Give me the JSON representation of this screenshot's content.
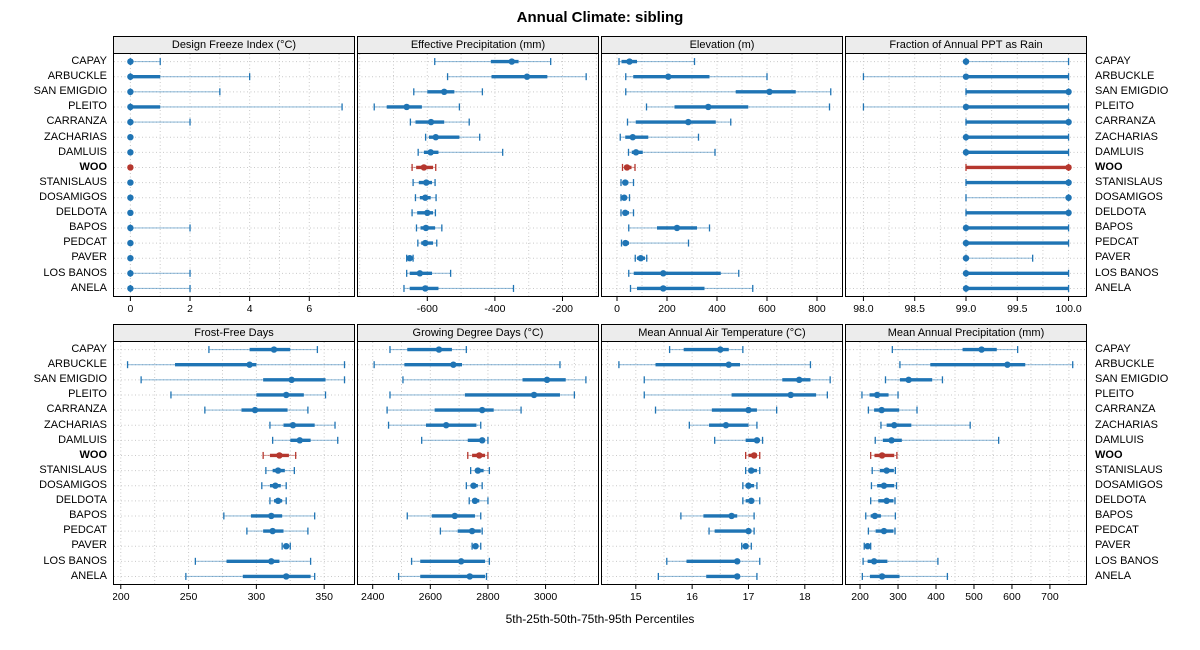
{
  "title": "Annual Climate: sibling",
  "caption": "5th-25th-50th-75th-95th Percentiles",
  "colors": {
    "series": "#1f74b4",
    "highlight": "#b5372e",
    "strip_bg": "#ececec",
    "grid": "#c9c9c9",
    "border": "#000000"
  },
  "sites": [
    "CAPAY",
    "ARBUCKLE",
    "SAN EMIGDIO",
    "PLEITO",
    "CARRANZA",
    "ZACHARIAS",
    "DAMLUIS",
    "WOO",
    "STANISLAUS",
    "DOSAMIGOS",
    "DELDOTA",
    "BAPOS",
    "PEDCAT",
    "PAVER",
    "LOS BANOS",
    "ANELA"
  ],
  "highlight_site": "WOO",
  "chart_data": {
    "type": "dotplot-percentiles",
    "percentile_labels": [
      "5th",
      "25th",
      "50th",
      "75th",
      "95th"
    ],
    "legend_position": "none",
    "grid": "dotted-minor",
    "panels": [
      {
        "title": "Design Freeze Index (°C)",
        "block": 0,
        "xlim": [
          -0.55,
          7.5
        ],
        "tick_values": [
          0,
          2,
          4,
          6
        ],
        "tick_labels": [
          "0",
          "2",
          "4",
          "6"
        ],
        "minor_step": 1,
        "values": [
          [
            0,
            0,
            0,
            0,
            1
          ],
          [
            0,
            0,
            0,
            1,
            4
          ],
          [
            0,
            0,
            0,
            0,
            3
          ],
          [
            0,
            0,
            0,
            1,
            7.1
          ],
          [
            0,
            0,
            0,
            0,
            2
          ],
          [
            0,
            0,
            0,
            0,
            0
          ],
          [
            0,
            0,
            0,
            0,
            0
          ],
          [
            0,
            0,
            0,
            0,
            0
          ],
          [
            0,
            0,
            0,
            0,
            0
          ],
          [
            0,
            0,
            0,
            0,
            0
          ],
          [
            0,
            0,
            0,
            0,
            0
          ],
          [
            0,
            0,
            0,
            0,
            2
          ],
          [
            0,
            0,
            0,
            0,
            0
          ],
          [
            0,
            0,
            0,
            0,
            0
          ],
          [
            0,
            0,
            0,
            0,
            2
          ],
          [
            0,
            0,
            0,
            0,
            2
          ]
        ]
      },
      {
        "title": "Effective Precipitation (mm)",
        "block": 0,
        "xlim": [
          -805,
          -95
        ],
        "tick_values": [
          -600,
          -400,
          -200
        ],
        "tick_labels": [
          "-600",
          "-400",
          "-200"
        ],
        "minor_step": 100,
        "values": [
          [
            -578,
            -412,
            -350,
            -330,
            -235
          ],
          [
            -540,
            -410,
            -305,
            -245,
            -130
          ],
          [
            -640,
            -600,
            -550,
            -520,
            -437
          ],
          [
            -757,
            -720,
            -661,
            -616,
            -505
          ],
          [
            -650,
            -635,
            -589,
            -550,
            -476
          ],
          [
            -605,
            -595,
            -575,
            -505,
            -445
          ],
          [
            -627,
            -610,
            -590,
            -567,
            -377
          ],
          [
            -645,
            -633,
            -610,
            -583,
            -575
          ],
          [
            -642,
            -625,
            -603,
            -586,
            -577
          ],
          [
            -635,
            -622,
            -606,
            -590,
            -574
          ],
          [
            -645,
            -630,
            -600,
            -583,
            -576
          ],
          [
            -632,
            -620,
            -604,
            -577,
            -557
          ],
          [
            -628,
            -618,
            -606,
            -583,
            -572
          ],
          [
            -661,
            -657,
            -652,
            -647,
            -642
          ],
          [
            -661,
            -652,
            -622,
            -586,
            -531
          ],
          [
            -669,
            -652,
            -606,
            -567,
            -345
          ]
        ]
      },
      {
        "title": "Elevation (m)",
        "block": 0,
        "xlim": [
          -60,
          900
        ],
        "tick_values": [
          0,
          200,
          400,
          600,
          800
        ],
        "tick_labels": [
          "0",
          "200",
          "400",
          "600",
          "800"
        ],
        "minor_step": 100,
        "values": [
          [
            8,
            18,
            50,
            80,
            310
          ],
          [
            35,
            65,
            205,
            370,
            600
          ],
          [
            35,
            475,
            610,
            715,
            855
          ],
          [
            118,
            230,
            365,
            525,
            850
          ],
          [
            42,
            75,
            285,
            395,
            455
          ],
          [
            13,
            33,
            63,
            125,
            326
          ],
          [
            46,
            59,
            76,
            103,
            392
          ],
          [
            22,
            30,
            40,
            58,
            72
          ],
          [
            16,
            25,
            33,
            45,
            66
          ],
          [
            16,
            22,
            29,
            40,
            50
          ],
          [
            16,
            25,
            33,
            48,
            66
          ],
          [
            47,
            160,
            240,
            320,
            370
          ],
          [
            18,
            25,
            34,
            48,
            286
          ],
          [
            73,
            80,
            95,
            112,
            119
          ],
          [
            47,
            67,
            185,
            415,
            487
          ],
          [
            54,
            80,
            185,
            350,
            543
          ]
        ]
      },
      {
        "title": "Fraction of Annual PPT as Rain",
        "block": 0,
        "xlim": [
          97.83,
          100.17
        ],
        "tick_values": [
          98.0,
          98.5,
          99.0,
          99.5,
          100.0
        ],
        "tick_labels": [
          "98.0",
          "98.5",
          "99.0",
          "99.5",
          "100.0"
        ],
        "minor_step": 0.25,
        "values": [
          [
            99,
            99,
            99,
            99,
            100
          ],
          [
            98,
            99,
            99,
            100,
            100
          ],
          [
            99,
            99,
            100,
            100,
            100
          ],
          [
            98,
            99,
            99,
            100,
            100
          ],
          [
            99,
            99,
            100,
            100,
            100
          ],
          [
            99,
            99,
            99,
            100,
            100
          ],
          [
            99,
            99,
            99,
            100,
            100
          ],
          [
            99,
            99,
            100,
            100,
            100
          ],
          [
            99,
            99,
            100,
            100,
            100
          ],
          [
            99,
            100,
            100,
            100,
            100
          ],
          [
            99,
            99,
            100,
            100,
            100
          ],
          [
            99,
            99,
            99,
            100,
            100
          ],
          [
            99,
            99,
            99,
            100,
            100
          ],
          [
            99,
            99,
            99,
            99,
            99.65
          ],
          [
            99,
            99,
            99,
            100,
            100
          ],
          [
            99,
            99,
            99,
            100,
            100
          ]
        ]
      },
      {
        "title": "Frost-Free Days",
        "block": 1,
        "xlim": [
          195,
          372
        ],
        "tick_values": [
          200,
          250,
          300,
          350
        ],
        "tick_labels": [
          "200",
          "250",
          "300",
          "350"
        ],
        "minor_step": 25,
        "values": [
          [
            265,
            295,
            313,
            325,
            345
          ],
          [
            205,
            240,
            295,
            300,
            365
          ],
          [
            215,
            305,
            326,
            351,
            365
          ],
          [
            237,
            300,
            322,
            335,
            351
          ],
          [
            262,
            289,
            299,
            323,
            338
          ],
          [
            310,
            320,
            327,
            343,
            358
          ],
          [
            312,
            325,
            332,
            340,
            360
          ],
          [
            305,
            310,
            317,
            324,
            329
          ],
          [
            307,
            312,
            316,
            321,
            328
          ],
          [
            304,
            310,
            314,
            318,
            322
          ],
          [
            310,
            313,
            316,
            319,
            322
          ],
          [
            276,
            296,
            311,
            319,
            343
          ],
          [
            293,
            305,
            312,
            320,
            338
          ],
          [
            319,
            320,
            322,
            323,
            325
          ],
          [
            255,
            278,
            311,
            317,
            340
          ],
          [
            248,
            290,
            322,
            340,
            343
          ]
        ]
      },
      {
        "title": "Growing Degree Days (°C)",
        "block": 1,
        "xlim": [
          2349,
          3182
        ],
        "tick_values": [
          2400,
          2600,
          2800,
          3000
        ],
        "tick_labels": [
          "2400",
          "2600",
          "2800",
          "3000"
        ],
        "minor_step": 100,
        "values": [
          [
            2460,
            2520,
            2630,
            2675,
            2725
          ],
          [
            2405,
            2510,
            2680,
            2710,
            3050
          ],
          [
            2505,
            2920,
            3005,
            3070,
            3140
          ],
          [
            2460,
            2720,
            2960,
            3050,
            3100
          ],
          [
            2450,
            2615,
            2780,
            2820,
            2915
          ],
          [
            2455,
            2585,
            2655,
            2760,
            2775
          ],
          [
            2570,
            2730,
            2780,
            2790,
            2800
          ],
          [
            2730,
            2745,
            2770,
            2790,
            2800
          ],
          [
            2740,
            2755,
            2765,
            2785,
            2805
          ],
          [
            2725,
            2740,
            2750,
            2765,
            2780
          ],
          [
            2735,
            2745,
            2755,
            2770,
            2800
          ],
          [
            2520,
            2605,
            2685,
            2755,
            2775
          ],
          [
            2635,
            2695,
            2745,
            2775,
            2780
          ],
          [
            2745,
            2750,
            2757,
            2765,
            2775
          ],
          [
            2535,
            2565,
            2707,
            2790,
            2805
          ],
          [
            2490,
            2565,
            2737,
            2790,
            2795
          ]
        ]
      },
      {
        "title": "Mean Annual Air Temperature (°C)",
        "block": 1,
        "xlim": [
          14.4,
          18.66
        ],
        "tick_values": [
          15,
          16,
          17,
          18
        ],
        "tick_labels": [
          "15",
          "16",
          "17",
          "18"
        ],
        "minor_step": 0.5,
        "values": [
          [
            15.6,
            15.85,
            16.5,
            16.65,
            16.9
          ],
          [
            14.7,
            15.35,
            16.65,
            16.85,
            18.1
          ],
          [
            15.15,
            17.6,
            17.9,
            18.1,
            18.45
          ],
          [
            15.15,
            16.7,
            17.75,
            18.2,
            18.4
          ],
          [
            15.35,
            16.35,
            17.0,
            17.15,
            17.5
          ],
          [
            15.95,
            16.3,
            16.6,
            17.0,
            17.15
          ],
          [
            16.4,
            16.95,
            17.15,
            17.2,
            17.25
          ],
          [
            16.95,
            17.0,
            17.1,
            17.15,
            17.2
          ],
          [
            16.95,
            17.0,
            17.05,
            17.15,
            17.2
          ],
          [
            16.9,
            16.95,
            17.0,
            17.1,
            17.15
          ],
          [
            16.9,
            16.95,
            17.05,
            17.1,
            17.2
          ],
          [
            15.8,
            16.2,
            16.7,
            16.8,
            17.1
          ],
          [
            16.3,
            16.4,
            17.0,
            17.05,
            17.1
          ],
          [
            16.88,
            16.92,
            16.95,
            17.0,
            17.05
          ],
          [
            15.55,
            15.9,
            16.8,
            16.85,
            17.2
          ],
          [
            15.4,
            16.25,
            16.8,
            16.85,
            17.15
          ]
        ]
      },
      {
        "title": "Mean Annual Precipitation (mm)",
        "block": 1,
        "xlim": [
          163,
          795
        ],
        "tick_values": [
          200,
          300,
          400,
          500,
          600,
          700
        ],
        "tick_labels": [
          "200",
          "300",
          "400",
          "500",
          "600",
          "700"
        ],
        "minor_step": 50,
        "values": [
          [
            285,
            470,
            520,
            560,
            615
          ],
          [
            305,
            385,
            588,
            635,
            760
          ],
          [
            267,
            305,
            328,
            390,
            417
          ],
          [
            205,
            225,
            245,
            275,
            300
          ],
          [
            222,
            237,
            257,
            303,
            350
          ],
          [
            255,
            270,
            290,
            335,
            490
          ],
          [
            240,
            260,
            283,
            310,
            565
          ],
          [
            228,
            238,
            258,
            290,
            297
          ],
          [
            232,
            252,
            270,
            289,
            293
          ],
          [
            230,
            245,
            263,
            290,
            296
          ],
          [
            228,
            248,
            270,
            288,
            292
          ],
          [
            215,
            228,
            239,
            255,
            293
          ],
          [
            222,
            241,
            263,
            288,
            292
          ],
          [
            211,
            214,
            220,
            224,
            228
          ],
          [
            208,
            220,
            237,
            272,
            405
          ],
          [
            206,
            226,
            258,
            304,
            430
          ]
        ]
      }
    ]
  }
}
